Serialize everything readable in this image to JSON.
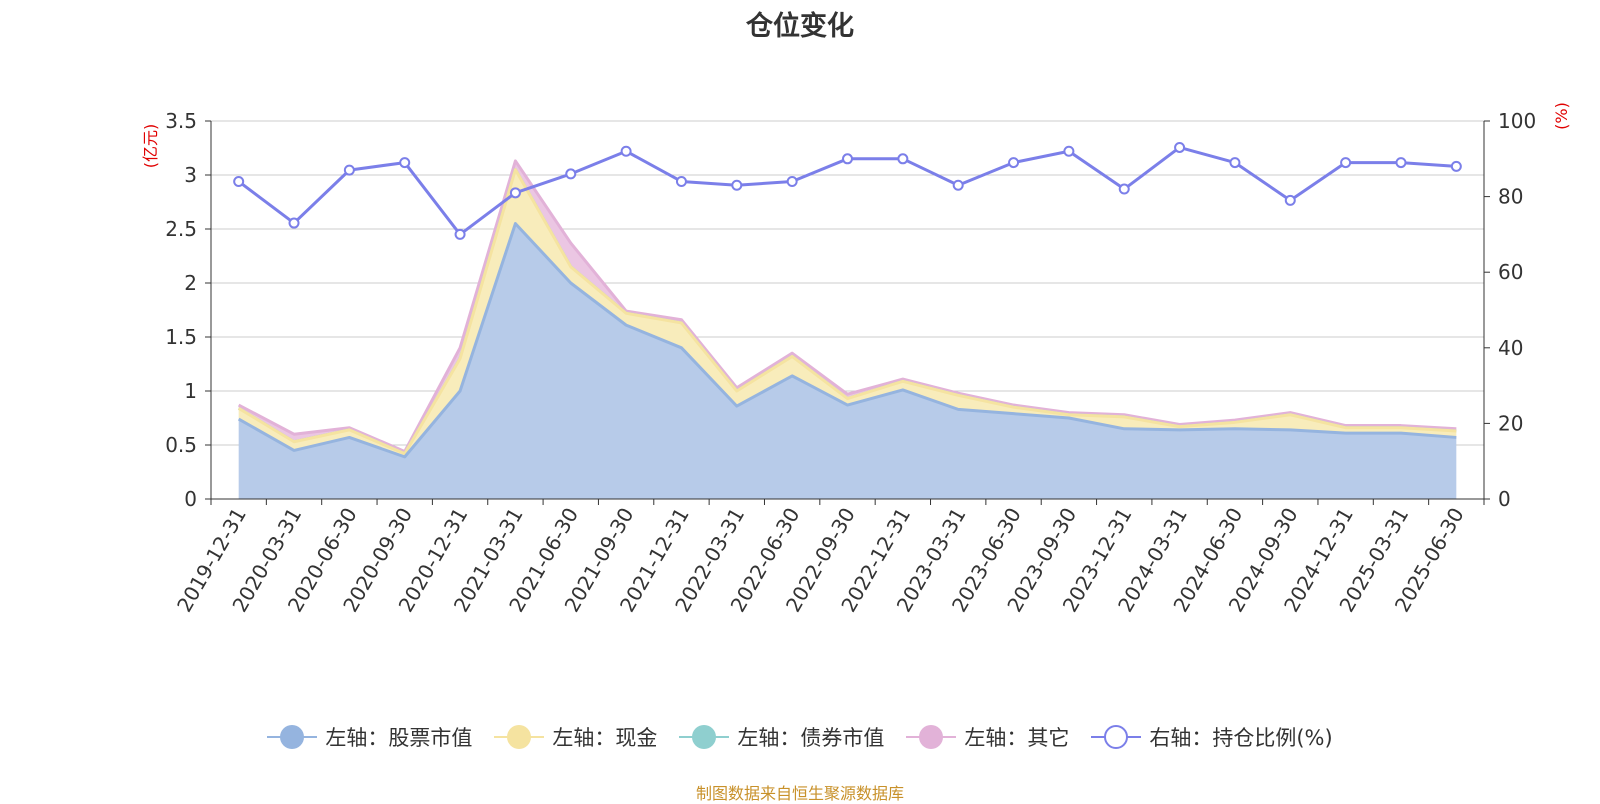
{
  "chart_data": {
    "type": "area",
    "title": "仓位变化",
    "left_axis_unit": "(亿元)",
    "right_axis_unit": "(%)",
    "ylim_left": [
      0,
      3.5
    ],
    "yticks_left": [
      "0",
      "0.5",
      "1",
      "1.5",
      "2",
      "2.5",
      "3",
      "3.5"
    ],
    "ylim_right": [
      0,
      100
    ],
    "yticks_right": [
      "0",
      "20",
      "40",
      "60",
      "80",
      "100"
    ],
    "grid": true,
    "legend_position": "bottom",
    "categories": [
      "2019-12-31",
      "2020-03-31",
      "2020-06-30",
      "2020-09-30",
      "2020-12-31",
      "2021-03-31",
      "2021-06-30",
      "2021-09-30",
      "2021-12-31",
      "2022-03-31",
      "2022-06-30",
      "2022-09-30",
      "2022-12-31",
      "2023-03-31",
      "2023-06-30",
      "2023-09-30",
      "2023-12-31",
      "2024-03-31",
      "2024-06-30",
      "2024-09-30",
      "2024-12-31",
      "2025-03-31",
      "2025-06-30"
    ],
    "series": [
      {
        "name": "左轴：股票市值",
        "axis": "left",
        "kind": "area",
        "color": "#95b4df",
        "fill": "#b7cbe9",
        "values": [
          0.74,
          0.45,
          0.57,
          0.39,
          1.0,
          2.55,
          2.0,
          1.61,
          1.4,
          0.86,
          1.14,
          0.87,
          1.01,
          0.83,
          0.79,
          0.75,
          0.65,
          0.64,
          0.65,
          0.64,
          0.61,
          0.61,
          0.57
        ]
      },
      {
        "name": "左轴：现金",
        "axis": "left",
        "kind": "area",
        "color": "#f5e3a0",
        "fill": "#f8ecbb",
        "values": [
          0.1,
          0.08,
          0.07,
          0.03,
          0.3,
          0.5,
          0.15,
          0.11,
          0.23,
          0.14,
          0.18,
          0.06,
          0.08,
          0.13,
          0.06,
          0.03,
          0.11,
          0.03,
          0.06,
          0.14,
          0.05,
          0.05,
          0.06
        ]
      },
      {
        "name": "左轴：债券市值",
        "axis": "left",
        "kind": "area",
        "color": "#8fcfcf",
        "fill": "#a7d9d9",
        "values": [
          0,
          0,
          0,
          0,
          0,
          0,
          0,
          0,
          0,
          0,
          0,
          0,
          0,
          0,
          0,
          0,
          0,
          0,
          0,
          0,
          0,
          0,
          0
        ]
      },
      {
        "name": "左轴：其它",
        "axis": "left",
        "kind": "area",
        "color": "#e2b2d8",
        "fill": "#ebc6e3",
        "values": [
          0.03,
          0.07,
          0.02,
          0.02,
          0.1,
          0.08,
          0.22,
          0.02,
          0.03,
          0.03,
          0.03,
          0.04,
          0.02,
          0.02,
          0.02,
          0.02,
          0.02,
          0.02,
          0.02,
          0.02,
          0.02,
          0.02,
          0.02
        ]
      },
      {
        "name": "右轴：持仓比例(%)",
        "axis": "right",
        "kind": "line",
        "color": "#7b7fe9",
        "values": [
          84,
          73,
          87,
          89,
          70,
          81,
          86,
          92,
          84,
          83,
          84,
          90,
          90,
          83,
          89,
          92,
          82,
          93,
          89,
          79,
          89,
          89,
          88
        ]
      }
    ],
    "source_note": "制图数据来自恒生聚源数据库"
  }
}
